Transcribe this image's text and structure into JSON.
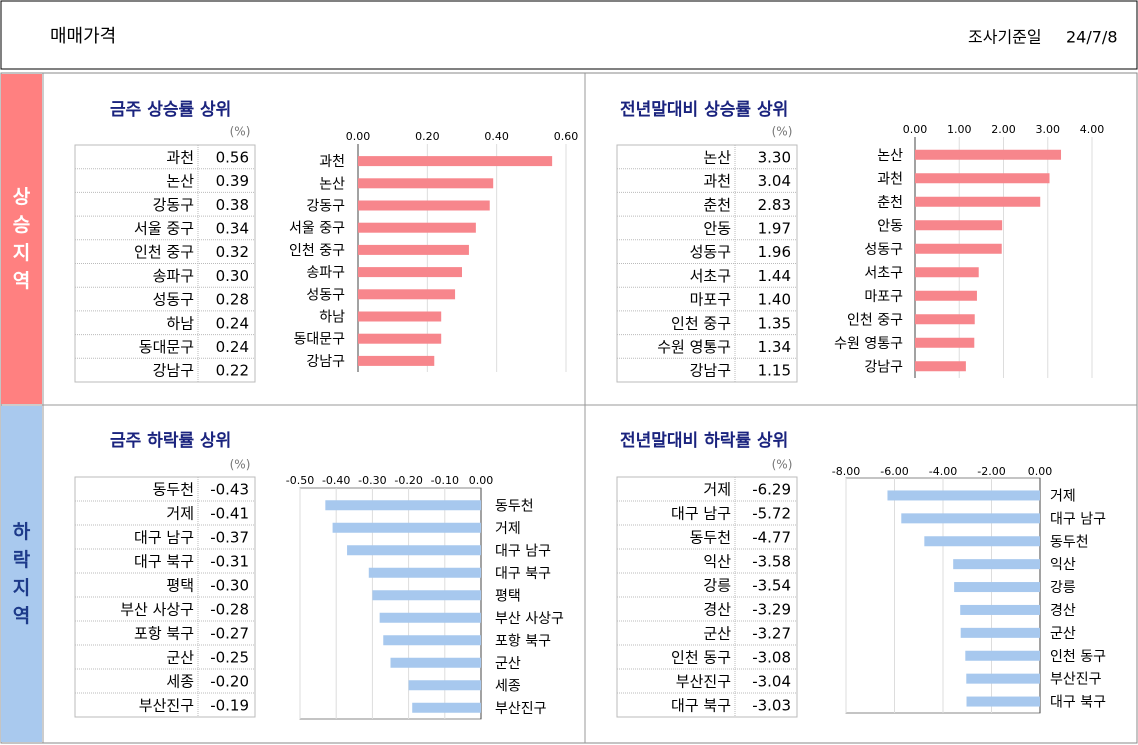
{
  "header": {
    "title": "매매가격",
    "date_label": "조사기준일",
    "date": "24/7/8"
  },
  "sections": [
    {
      "label": "상승지역"
    },
    {
      "label": "하락지역"
    }
  ],
  "chart_data": [
    {
      "type": "bar",
      "title": "금주 상승률 상위",
      "unit": "(%)",
      "color": "#f7868c",
      "categories": [
        "과천",
        "논산",
        "강동구",
        "서울 중구",
        "인천 중구",
        "송파구",
        "성동구",
        "하남",
        "동대문구",
        "강남구"
      ],
      "values": [
        0.56,
        0.39,
        0.38,
        0.34,
        0.32,
        0.3,
        0.28,
        0.24,
        0.24,
        0.22
      ],
      "value_labels": [
        "0.56",
        "0.39",
        "0.38",
        "0.34",
        "0.32",
        "0.30",
        "0.28",
        "0.24",
        "0.24",
        "0.22"
      ],
      "xlim": [
        0,
        0.6
      ],
      "xticks": [
        {
          "value": 0,
          "label": "0.00"
        },
        {
          "value": 0.2,
          "label": "0.20"
        },
        {
          "value": 0.4,
          "label": "0.40"
        },
        {
          "value": 0.6,
          "label": "0.60"
        }
      ],
      "grid": true
    },
    {
      "type": "bar",
      "title": "전년말대비 상승률 상위",
      "unit": "(%)",
      "color": "#f7868c",
      "categories": [
        "논산",
        "과천",
        "춘천",
        "안동",
        "성동구",
        "서초구",
        "마포구",
        "인천 중구",
        "수원 영통구",
        "강남구"
      ],
      "values": [
        3.3,
        3.04,
        2.83,
        1.97,
        1.96,
        1.44,
        1.4,
        1.35,
        1.34,
        1.15
      ],
      "value_labels": [
        "3.30",
        "3.04",
        "2.83",
        "1.97",
        "1.96",
        "1.44",
        "1.40",
        "1.35",
        "1.34",
        "1.15"
      ],
      "xlim": [
        0,
        4
      ],
      "xticks": [
        {
          "value": 0,
          "label": "0.00"
        },
        {
          "value": 1,
          "label": "1.00"
        },
        {
          "value": 2,
          "label": "2.00"
        },
        {
          "value": 3,
          "label": "3.00"
        },
        {
          "value": 4,
          "label": "4.00"
        }
      ],
      "grid": true
    },
    {
      "type": "bar",
      "title": "금주 하락률 상위",
      "unit": "(%)",
      "color": "#a7c8ee",
      "categories": [
        "동두천",
        "거제",
        "대구 남구",
        "대구 북구",
        "평택",
        "부산 사상구",
        "포항 북구",
        "군산",
        "세종",
        "부산진구"
      ],
      "values": [
        -0.43,
        -0.41,
        -0.37,
        -0.31,
        -0.3,
        -0.28,
        -0.27,
        -0.25,
        -0.2,
        -0.19
      ],
      "value_labels": [
        "-0.43",
        "-0.41",
        "-0.37",
        "-0.31",
        "-0.30",
        "-0.28",
        "-0.27",
        "-0.25",
        "-0.20",
        "-0.19"
      ],
      "xlim": [
        -0.5,
        0
      ],
      "xticks": [
        {
          "value": -0.5,
          "label": "-0.50"
        },
        {
          "value": -0.4,
          "label": "-0.40"
        },
        {
          "value": -0.3,
          "label": "-0.30"
        },
        {
          "value": -0.2,
          "label": "-0.20"
        },
        {
          "value": -0.1,
          "label": "-0.10"
        },
        {
          "value": 0,
          "label": "0.00"
        }
      ],
      "grid": true
    },
    {
      "type": "bar",
      "title": "전년말대비 하락률 상위",
      "unit": "(%)",
      "color": "#a7c8ee",
      "categories": [
        "거제",
        "대구 남구",
        "동두천",
        "익산",
        "강릉",
        "경산",
        "군산",
        "인천 동구",
        "부산진구",
        "대구 북구"
      ],
      "values": [
        -6.29,
        -5.72,
        -4.77,
        -3.58,
        -3.54,
        -3.29,
        -3.27,
        -3.08,
        -3.04,
        -3.03
      ],
      "xlim": [
        -8,
        0
      ],
      "xticks": [
        {
          "value": -8,
          "label": "-8.00"
        },
        {
          "value": -6,
          "label": "-6.00"
        },
        {
          "value": -4,
          "label": "-4.00"
        },
        {
          "value": -2,
          "label": "-2.00"
        },
        {
          "value": 0,
          "label": "0.00"
        }
      ],
      "grid": true
    }
  ]
}
